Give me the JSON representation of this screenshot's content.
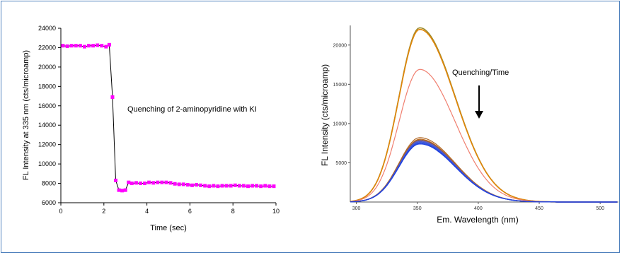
{
  "chart_data": [
    {
      "type": "line",
      "xlabel": "Time (sec)",
      "ylabel": "FL Intensity at 335 nm (cts/microamp)",
      "xlim": [
        0,
        10
      ],
      "ylim": [
        6000,
        24000
      ],
      "x_ticks": [
        "0",
        "2",
        "4",
        "6",
        "8",
        "10"
      ],
      "y_ticks": [
        "6000",
        "8000",
        "10000",
        "12000",
        "14000",
        "16000",
        "18000",
        "20000",
        "22000",
        "24000"
      ],
      "annotation": "Quenching of 2-aminopyridine with KI",
      "marker_color": "#ff00ff",
      "line_color": "#000000",
      "grid": false,
      "series": [
        {
          "x": [
            0.1,
            0.3,
            0.5,
            0.7,
            0.9,
            1.1,
            1.3,
            1.5,
            1.7,
            1.9,
            2.1,
            2.25,
            2.4,
            2.55,
            2.7,
            2.85,
            3.0,
            3.15,
            3.3,
            3.5,
            3.7,
            3.9,
            4.1,
            4.3,
            4.5,
            4.7,
            4.9,
            5.1,
            5.3,
            5.5,
            5.7,
            5.9,
            6.1,
            6.3,
            6.5,
            6.7,
            6.9,
            7.1,
            7.3,
            7.5,
            7.7,
            7.9,
            8.1,
            8.3,
            8.5,
            8.7,
            8.9,
            9.1,
            9.3,
            9.5,
            9.7,
            9.9
          ],
          "values": [
            22200,
            22150,
            22200,
            22200,
            22200,
            22100,
            22200,
            22200,
            22250,
            22200,
            22100,
            22300,
            16900,
            8300,
            7300,
            7250,
            7300,
            8100,
            8000,
            8050,
            8000,
            8000,
            8100,
            8050,
            8100,
            8100,
            8100,
            8050,
            7950,
            7900,
            7900,
            7850,
            7800,
            7850,
            7800,
            7750,
            7700,
            7750,
            7700,
            7750,
            7750,
            7750,
            7800,
            7750,
            7750,
            7700,
            7750,
            7750,
            7700,
            7750,
            7700,
            7700
          ]
        }
      ]
    },
    {
      "type": "line",
      "xlabel": "Em. Wavelength (nm)",
      "ylabel": "FL Intensity (cts/microamp)",
      "xlim": [
        295,
        515
      ],
      "ylim": [
        0,
        22500
      ],
      "x_ticks": [
        "300",
        "350",
        "400",
        "450",
        "500"
      ],
      "y_ticks": [
        "5000",
        "10000",
        "15000",
        "20000"
      ],
      "annotation": "Quenching/Time",
      "grid": false,
      "series": [
        {
          "peak": 22200,
          "color": "#9c8a2a"
        },
        {
          "peak": 22000,
          "color": "#e0860a"
        },
        {
          "peak": 16900,
          "color": "#f07f6f"
        },
        {
          "peak": 8200,
          "color": "#b06a2a"
        },
        {
          "peak": 8000,
          "color": "#c46e1e"
        },
        {
          "peak": 7900,
          "color": "#8a5a3a"
        },
        {
          "peak": 7800,
          "color": "#6a5ab0"
        },
        {
          "peak": 7700,
          "color": "#4a5ad0"
        },
        {
          "peak": 7600,
          "color": "#3355dd"
        },
        {
          "peak": 7500,
          "color": "#2a4ae0"
        },
        {
          "peak": 7400,
          "color": "#1f3fdf"
        }
      ]
    }
  ]
}
